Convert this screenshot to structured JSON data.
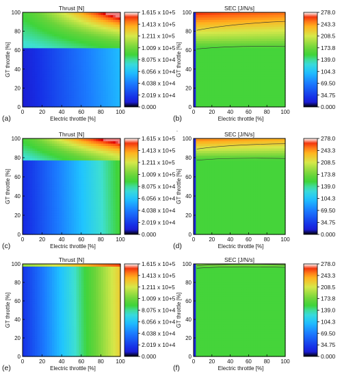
{
  "figure": {
    "stray_mark": "▫"
  },
  "colormap": [
    {
      "v": 0.0,
      "hex": "#000000"
    },
    {
      "v": 0.02,
      "hex": "#1e12c8"
    },
    {
      "v": 0.1,
      "hex": "#1630e6"
    },
    {
      "v": 0.25,
      "hex": "#1b7cff"
    },
    {
      "v": 0.37,
      "hex": "#20c4ff"
    },
    {
      "v": 0.47,
      "hex": "#3fe0d0"
    },
    {
      "v": 0.55,
      "hex": "#3fd43a"
    },
    {
      "v": 0.62,
      "hex": "#6ad43a"
    },
    {
      "v": 0.75,
      "hex": "#d6e84a"
    },
    {
      "v": 0.85,
      "hex": "#ffb21e"
    },
    {
      "v": 0.93,
      "hex": "#ff5a14"
    },
    {
      "v": 0.98,
      "hex": "#e00000"
    },
    {
      "v": 1.0,
      "hex": "#ffffff"
    }
  ],
  "chart_data": [
    {
      "panel": "(a)",
      "type": "heatmap",
      "title": "Thrust [N]",
      "xlabel": "Electric throttle [%]",
      "ylabel": "GT throttle [%]",
      "xlim": [
        0,
        100
      ],
      "ylim": [
        0,
        100
      ],
      "xticks": [
        "0",
        "20",
        "40",
        "60",
        "80",
        "100"
      ],
      "yticks": [
        "0",
        "20",
        "40",
        "60",
        "80",
        "100"
      ],
      "colorbar": {
        "min": 0,
        "max": 161500,
        "tick_labels": [
          "1.615 x 10+5",
          "1.413 x 10+5",
          "1.211 x 10+5",
          "1.009 x 10+5",
          "8.075 x 10+4",
          "6.056 x 10+4",
          "4.038 x 10+4",
          "2.019 x 10+4",
          "0.000"
        ]
      },
      "field": {
        "kind": "thrust",
        "gt_break": 62,
        "lower_start": 0.05,
        "lower_end": 0.35,
        "upper_start": 0.45,
        "upper_end": 0.57,
        "peak": 0.97
      }
    },
    {
      "panel": "(b)",
      "type": "heatmap",
      "title": "SEC [J/N/s]",
      "xlabel": "Electric throttle [%]",
      "ylabel": "GT throttle [%]",
      "xlim": [
        0,
        100
      ],
      "ylim": [
        0,
        100
      ],
      "xticks": [
        "0",
        "20",
        "40",
        "60",
        "80",
        "100"
      ],
      "yticks": [
        "0",
        "20",
        "40",
        "60",
        "80",
        "100"
      ],
      "colorbar": {
        "min": 0,
        "max": 278,
        "tick_labels": [
          "278.0",
          "243.3",
          "208.5",
          "173.8",
          "139.0",
          "104.3",
          "69.50",
          "34.75",
          "0.000"
        ]
      },
      "field": {
        "kind": "sec",
        "gt_break": 62,
        "base": 0.56,
        "top": 0.96
      }
    },
    {
      "panel": "(c)",
      "type": "heatmap",
      "title": "Thrust [N]",
      "xlabel": "Electric throttle [%]",
      "ylabel": "GT throttle [%]",
      "xlim": [
        0,
        100
      ],
      "ylim": [
        0,
        100
      ],
      "xticks": [
        "0",
        "20",
        "40",
        "60",
        "80",
        "100"
      ],
      "yticks": [
        "0",
        "20",
        "40",
        "60",
        "80",
        "100"
      ],
      "colorbar": {
        "min": 0,
        "max": 161500,
        "tick_labels": [
          "1.615 x 10+5",
          "1.413 x 10+5",
          "1.211 x 10+5",
          "1.009 x 10+5",
          "8.075 x 10+4",
          "6.056 x 10+4",
          "4.038 x 10+4",
          "2.019 x 10+4",
          "0.000"
        ]
      },
      "field": {
        "kind": "thrust",
        "gt_break": 78,
        "lower_start": 0.08,
        "lower_end": 0.56,
        "upper_start": 0.45,
        "upper_end": 0.72,
        "peak": 0.96
      }
    },
    {
      "panel": "(d)",
      "type": "heatmap",
      "title": "SEC [J/N/s]",
      "xlabel": "Electric throttle [%]",
      "ylabel": "GT throttle [%]",
      "xlim": [
        0,
        100
      ],
      "ylim": [
        0,
        100
      ],
      "xticks": [
        "0",
        "20",
        "40",
        "60",
        "80",
        "100"
      ],
      "yticks": [
        "0",
        "20",
        "40",
        "60",
        "80",
        "100"
      ],
      "colorbar": {
        "min": 0,
        "max": 278,
        "tick_labels": [
          "278.0",
          "243.3",
          "208.5",
          "173.8",
          "139.0",
          "104.3",
          "69.50",
          "34.75",
          "0.000"
        ]
      },
      "field": {
        "kind": "sec",
        "gt_break": 78,
        "base": 0.56,
        "top": 0.9
      }
    },
    {
      "panel": "(e)",
      "type": "heatmap",
      "title": "Thrust [N]",
      "xlabel": "Electric throttle [%]",
      "ylabel": "GT throttle [%]",
      "xlim": [
        0,
        100
      ],
      "ylim": [
        0,
        100
      ],
      "xticks": [
        "0",
        "20",
        "40",
        "60",
        "80",
        "100"
      ],
      "yticks": [
        "0",
        "20",
        "40",
        "60",
        "80",
        "100"
      ],
      "colorbar": {
        "min": 0,
        "max": 161500,
        "tick_labels": [
          "1.615 x 10+5",
          "1.413 x 10+5",
          "1.211 x 10+5",
          "1.009 x 10+5",
          "8.075 x 10+4",
          "6.056 x 10+4",
          "4.038 x 10+4",
          "2.019 x 10+4",
          "0.000"
        ]
      },
      "field": {
        "kind": "thrust",
        "gt_break": 97,
        "lower_start": 0.1,
        "lower_end": 0.8,
        "upper_start": 0.6,
        "upper_end": 0.8,
        "peak": 0.97
      }
    },
    {
      "panel": "(f)",
      "type": "heatmap",
      "title": "SEC [J/N/s]",
      "xlabel": "Electric throttle [%]",
      "ylabel": "GT throttle [%]",
      "xlim": [
        0,
        100
      ],
      "ylim": [
        0,
        100
      ],
      "xticks": [
        "0",
        "20",
        "40",
        "60",
        "80",
        "100"
      ],
      "yticks": [
        "0",
        "20",
        "40",
        "60",
        "80",
        "100"
      ],
      "colorbar": {
        "min": 0,
        "max": 278,
        "tick_labels": [
          "278.0",
          "243.3",
          "208.5",
          "173.8",
          "139.0",
          "104.3",
          "69.50",
          "34.75",
          "0.000"
        ]
      },
      "field": {
        "kind": "sec",
        "gt_break": 96,
        "base": 0.56,
        "top": 0.66
      }
    }
  ]
}
